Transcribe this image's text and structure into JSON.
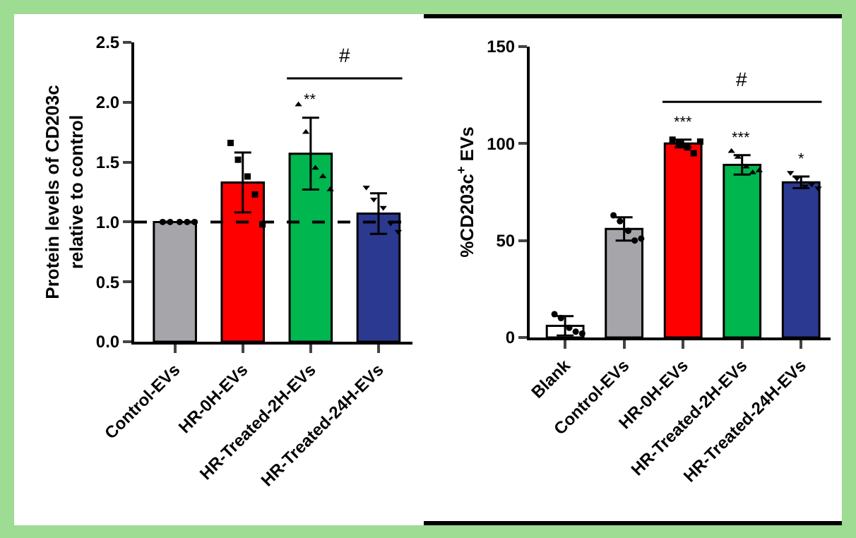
{
  "chart_data": [
    {
      "type": "bar",
      "ylabel": "Protein levels of CD203c\nrelative to control",
      "categories": [
        "Control-EVs",
        "HR-0H-EVs",
        "HR-Treated-2H-EVs",
        "HR-Treated-24H-EVs"
      ],
      "ylim": [
        0,
        2.5
      ],
      "yticks": [
        {
          "value": 0,
          "label": "0.0"
        },
        {
          "value": 0.5,
          "label": "0.5"
        },
        {
          "value": 1,
          "label": "1.0"
        },
        {
          "value": 1.5,
          "label": "1.5"
        },
        {
          "value": 2,
          "label": "2.0"
        },
        {
          "value": 2.5,
          "label": "2.5"
        }
      ],
      "grid": false,
      "series": [
        {
          "type": "bar",
          "colors": [
            "#a6a6aa",
            "#ff0000",
            "#00b64f",
            "#2b3990"
          ],
          "values": [
            1.0,
            1.33,
            1.57,
            1.07
          ],
          "errors": [
            0,
            0.25,
            0.3,
            0.17
          ]
        },
        {
          "type": "scatter",
          "marker": "circle",
          "color": "#000000",
          "x": [
            "Control-EVs",
            "Control-EVs",
            "Control-EVs",
            "Control-EVs",
            "Control-EVs"
          ],
          "values": [
            1,
            1,
            1,
            1,
            1
          ]
        },
        {
          "type": "scatter",
          "marker": "square",
          "color": "#000000",
          "x": [
            "HR-0H-EVs",
            "HR-0H-EVs",
            "HR-0H-EVs",
            "HR-0H-EVs",
            "HR-0H-EVs"
          ],
          "values": [
            1.66,
            1.52,
            1.38,
            1.23,
            0.98
          ]
        },
        {
          "type": "scatter",
          "marker": "triangle",
          "color": "#000000",
          "x": [
            "HR-Treated-2H-EVs",
            "HR-Treated-2H-EVs",
            "HR-Treated-2H-EVs",
            "HR-Treated-2H-EVs",
            "HR-Treated-2H-EVs"
          ],
          "values": [
            1.98,
            1.75,
            1.45,
            1.38,
            1.27
          ]
        },
        {
          "type": "scatter",
          "marker": "triangle-down",
          "color": "#000000",
          "x": [
            "HR-Treated-24H-EVs",
            "HR-Treated-24H-EVs",
            "HR-Treated-24H-EVs",
            "HR-Treated-24H-EVs",
            "HR-Treated-24H-EVs"
          ],
          "values": [
            1.29,
            1.19,
            1.12,
            0.99,
            0.92
          ]
        }
      ],
      "ref_lines": [
        {
          "axis": "y",
          "value": 1,
          "line_style": "dashed",
          "color": "#000000"
        }
      ],
      "annotations": [
        {
          "text": "**",
          "x": "HR-Treated-2H-EVs",
          "y": 1.87
        },
        "#"
      ]
    },
    {
      "type": "bar",
      "ylabel": "%CD203c$^{+}$ EVs",
      "categories": [
        "Blank",
        "Control-EVs",
        "HR-0H-EVs",
        "HR-Treated-2H-EVs",
        "HR-Treated-24H-EVs"
      ],
      "ylim": [
        0,
        150
      ],
      "yticks": [
        0,
        50,
        100,
        150
      ],
      "grid": false,
      "series": [
        {
          "type": "bar",
          "colors": [
            "#ffffff",
            "#a6a6aa",
            "#ff0000",
            "#00b64f",
            "#2b3990"
          ],
          "values": [
            6,
            56,
            100,
            89,
            80
          ],
          "errors": [
            5,
            6,
            2,
            5,
            3
          ]
        },
        {
          "type": "scatter",
          "marker": "circle",
          "color": "#000000",
          "x": [
            "Blank",
            "Blank",
            "Blank",
            "Blank",
            "Blank"
          ],
          "values": [
            12,
            10,
            5,
            3,
            2
          ]
        },
        {
          "type": "scatter",
          "marker": "circle",
          "color": "#000000",
          "x": [
            "Control-EVs",
            "Control-EVs",
            "Control-EVs",
            "Control-EVs",
            "Control-EVs"
          ],
          "values": [
            63,
            60,
            55,
            50,
            51
          ]
        },
        {
          "type": "scatter",
          "marker": "square",
          "color": "#000000",
          "x": [
            "HR-0H-EVs",
            "HR-0H-EVs",
            "HR-0H-EVs",
            "HR-0H-EVs",
            "HR-0H-EVs"
          ],
          "values": [
            102,
            100,
            98,
            95,
            101
          ]
        },
        {
          "type": "scatter",
          "marker": "triangle",
          "color": "#000000",
          "x": [
            "HR-Treated-2H-EVs",
            "HR-Treated-2H-EVs",
            "HR-Treated-2H-EVs",
            "HR-Treated-2H-EVs",
            "HR-Treated-2H-EVs"
          ],
          "values": [
            96,
            93,
            88,
            85,
            86
          ]
        },
        {
          "type": "scatter",
          "marker": "triangle-down",
          "color": "#000000",
          "x": [
            "HR-Treated-24H-EVs",
            "HR-Treated-24H-EVs",
            "HR-Treated-24H-EVs",
            "HR-Treated-24H-EVs",
            "HR-Treated-24H-EVs"
          ],
          "values": [
            85,
            82,
            78,
            79,
            77
          ]
        }
      ],
      "annotations": [
        {
          "text": "***",
          "x": "HR-0H-EVs",
          "y": 102
        },
        {
          "text": "***",
          "x": "HR-Treated-2H-EVs",
          "y": 94
        },
        {
          "text": "*",
          "x": "HR-Treated-24H-EVs",
          "y": 83
        },
        "#"
      ]
    }
  ]
}
